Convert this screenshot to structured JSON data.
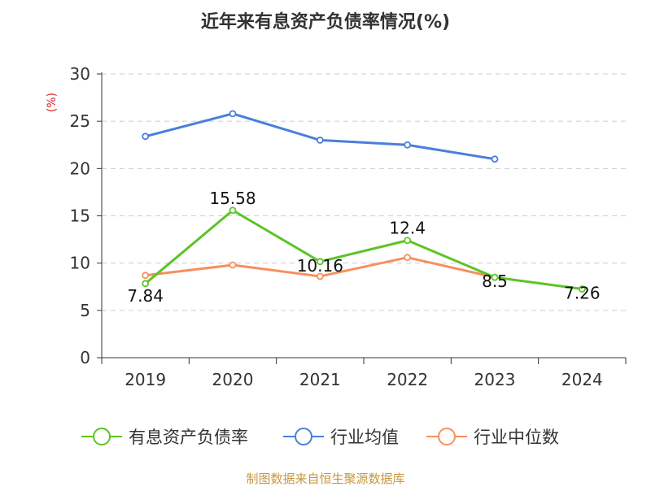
{
  "chart_data": {
    "type": "line",
    "title": "近年来有息资产负债率情况(%)",
    "ylabel": "(%)",
    "xlabel": "",
    "categories": [
      "2019",
      "2020",
      "2021",
      "2022",
      "2023",
      "2024"
    ],
    "ylim": [
      0,
      30
    ],
    "yticks": [
      0,
      5,
      10,
      15,
      20,
      25,
      30
    ],
    "grid": true,
    "legend_position": "bottom",
    "series": [
      {
        "name": "有息资产负债率",
        "color": "#5cc426",
        "values": [
          7.84,
          15.58,
          10.16,
          12.4,
          8.5,
          7.26
        ],
        "labels": [
          "7.84",
          "15.58",
          "10.16",
          "12.4",
          "8.5",
          "7.26"
        ]
      },
      {
        "name": "行业均值",
        "color": "#4a7fdb",
        "values": [
          23.4,
          25.8,
          23.0,
          22.5,
          21.0,
          null
        ]
      },
      {
        "name": "行业中位数",
        "color": "#f6905f",
        "values": [
          8.7,
          9.8,
          8.6,
          10.6,
          8.5,
          null
        ]
      }
    ],
    "source_note": "制图数据来自恒生聚源数据库"
  }
}
